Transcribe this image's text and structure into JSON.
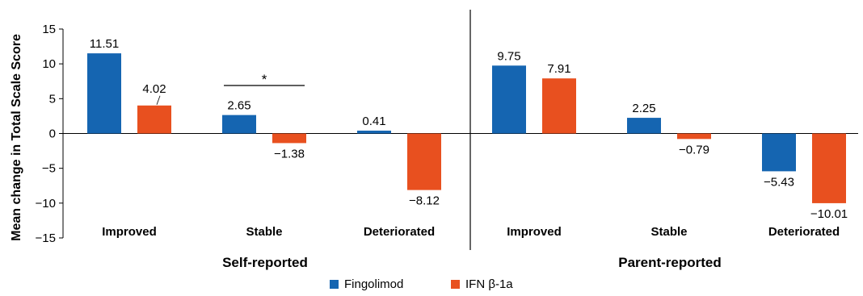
{
  "chart_data": {
    "type": "bar",
    "ylabel": "Mean change in Total Scale Score",
    "ylim": [
      -15,
      15
    ],
    "yticks": [
      15,
      10,
      5,
      0,
      -5,
      -10,
      -15
    ],
    "ytick_labels": [
      "15",
      "10",
      "5",
      "0",
      "−5",
      "−10",
      "−15"
    ],
    "colors": {
      "Fingolimod": "#1565b1",
      "IFN β-1a": "#e8501f"
    },
    "groups": [
      {
        "name": "Self-reported",
        "categories": [
          "Improved",
          "Stable",
          "Deteriorated"
        ],
        "series": [
          {
            "name": "Fingolimod",
            "values": [
              11.51,
              2.65,
              0.41
            ],
            "labels": [
              "11.51",
              "2.65",
              "0.41"
            ]
          },
          {
            "name": "IFN β-1a",
            "values": [
              4.02,
              -1.38,
              -8.12
            ],
            "labels": [
              "4.02",
              "−1.38",
              "−8.12"
            ]
          }
        ],
        "annotation": {
          "text": "*",
          "category": "Stable"
        }
      },
      {
        "name": "Parent-reported",
        "categories": [
          "Improved",
          "Stable",
          "Deteriorated"
        ],
        "series": [
          {
            "name": "Fingolimod",
            "values": [
              9.75,
              2.25,
              -5.43
            ],
            "labels": [
              "9.75",
              "2.25",
              "−5.43"
            ]
          },
          {
            "name": "IFN β-1a",
            "values": [
              7.91,
              -0.79,
              -10.01
            ],
            "labels": [
              "7.91",
              "−0.79",
              "−10.01"
            ]
          }
        ]
      }
    ],
    "legend": {
      "placement": "bottom-center",
      "entries": [
        "Fingolimod",
        "IFN β-1a"
      ]
    }
  }
}
